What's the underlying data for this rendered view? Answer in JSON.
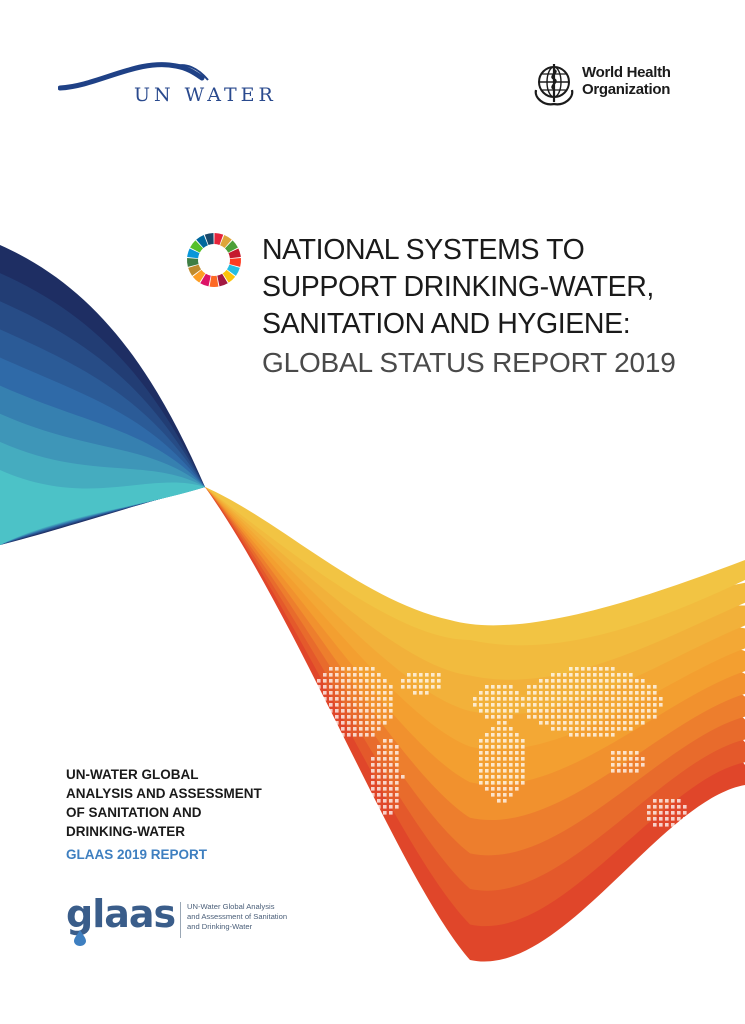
{
  "logos": {
    "un_water": "UN WATER",
    "who_line1": "World Health",
    "who_line2": "Organization",
    "sdg_wheel_icon": "sdg-wheel-icon",
    "glaas": "glaas"
  },
  "title": {
    "line1": "NATIONAL SYSTEMS TO",
    "line2": "SUPPORT DRINKING-WATER,",
    "line3": "SANITATION AND HYGIENE:",
    "subtitle": "GLOBAL STATUS REPORT 2019"
  },
  "report": {
    "line1": "UN-WATER GLOBAL",
    "line2": "ANALYSIS AND ASSESSMENT",
    "line3": "OF SANITATION AND",
    "line4": "DRINKING-WATER",
    "glaas_label": "GLAAS 2019 REPORT"
  },
  "glaas_desc": {
    "line1": "UN-Water Global Analysis",
    "line2": "and Assessment of Sanitation",
    "line3": "and Drinking-Water"
  },
  "colors": {
    "blue_dark": "#1e2e63",
    "blue_mid": "#2f6aa8",
    "teal": "#4cc2c7",
    "yellow": "#f2c443",
    "orange": "#f39a2e",
    "red": "#e0462a",
    "title_text": "#1a1a1a",
    "glaas_blue": "#3e7fc0"
  }
}
